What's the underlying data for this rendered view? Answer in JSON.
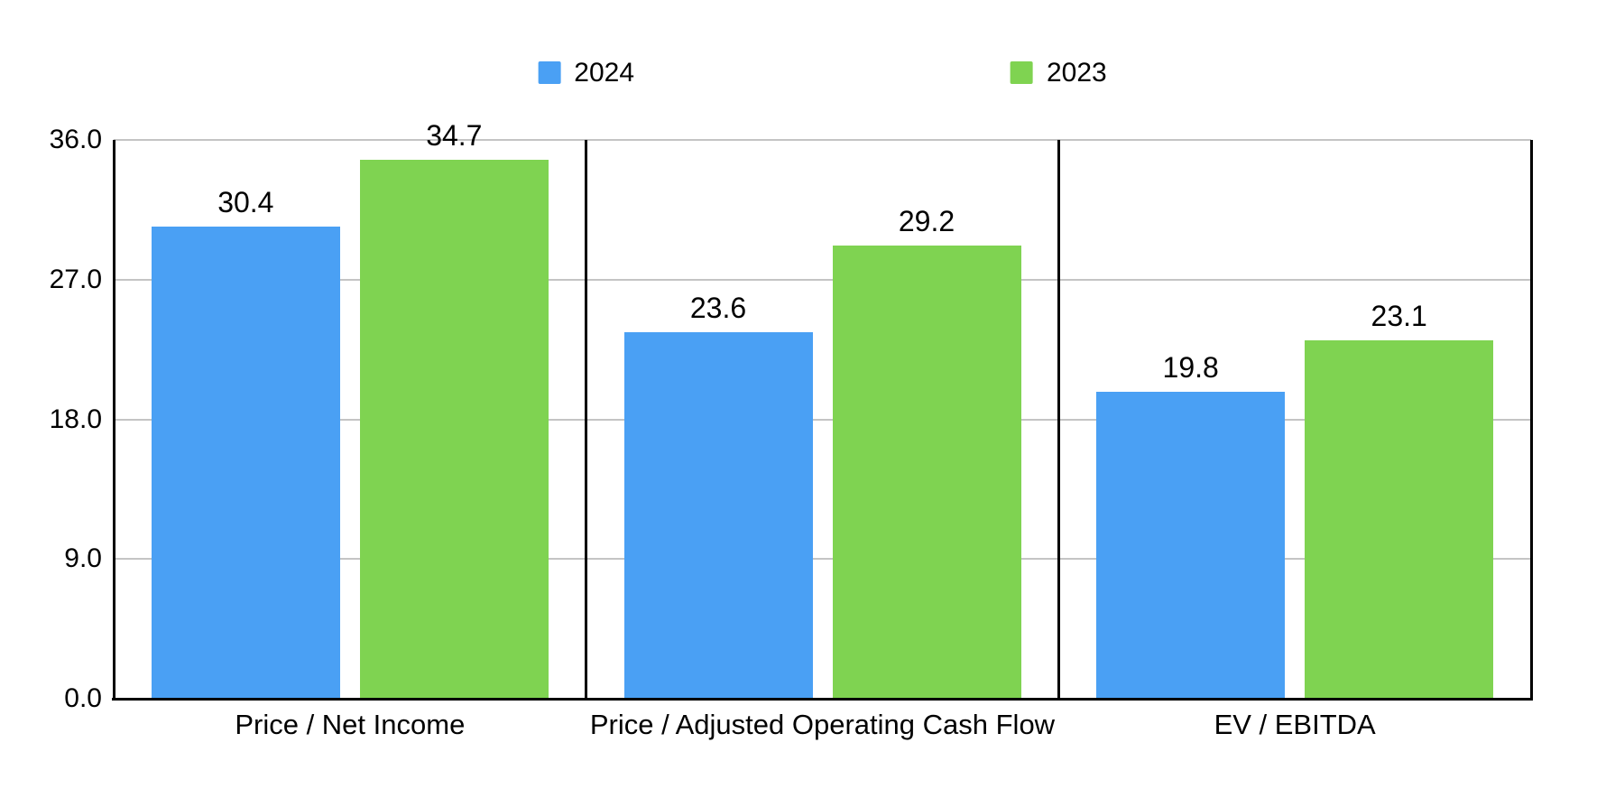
{
  "chart_data": {
    "type": "bar",
    "title": "",
    "categories": [
      "Price / Net Income",
      "Price / Adjusted Operating Cash Flow",
      "EV / EBITDA"
    ],
    "series": [
      {
        "name": "2024",
        "color": "#4AA0F4",
        "values": [
          30.4,
          23.6,
          19.8
        ]
      },
      {
        "name": "2023",
        "color": "#7FD351",
        "values": [
          34.7,
          29.2,
          23.1
        ]
      }
    ],
    "data_labels": [
      "30.4",
      "23.6",
      "19.8",
      "34.7",
      "29.2",
      "23.1"
    ],
    "ylim": [
      0,
      36
    ],
    "y_ticks": [
      {
        "value": 0,
        "label": "0.0"
      },
      {
        "value": 9,
        "label": "9.0"
      },
      {
        "value": 18,
        "label": "18.0"
      },
      {
        "value": 27,
        "label": "27.0"
      },
      {
        "value": 36,
        "label": "36.0"
      }
    ],
    "grid": true,
    "legend_position": "top",
    "legend_entries": [
      "2024",
      "2023"
    ]
  },
  "colors": {
    "background": "#FFFFFF",
    "axis_line": "#000000",
    "panel_divider": "#000000",
    "gridline": "#C4C4C4",
    "text": "#000000",
    "series_2024": "#4AA0F4",
    "series_2023": "#7FD351"
  }
}
